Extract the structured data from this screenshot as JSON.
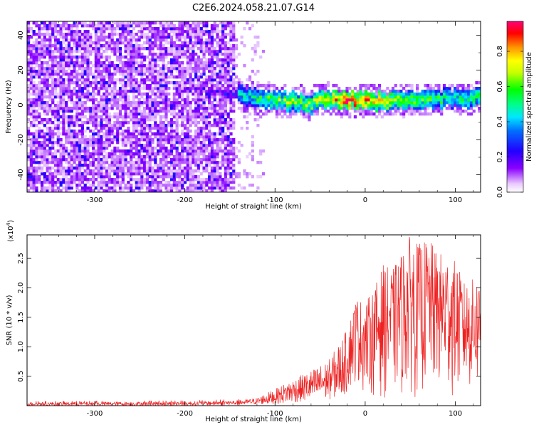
{
  "title": "C2E6.2024.058.21.07.G14",
  "chart_data": [
    {
      "type": "heatmap",
      "title": "C2E6.2024.058.21.07.G14",
      "xlabel": "Height of straight line (km)",
      "ylabel": "Frequency (Hz)",
      "xlim": [
        -375,
        128
      ],
      "ylim": [
        -50,
        48
      ],
      "xticks": [
        -300,
        -200,
        -100,
        0,
        100
      ],
      "yticks": [
        -40,
        -20,
        0,
        20,
        40
      ],
      "xtick_labels": [
        "-300",
        "-200",
        "-100",
        "0",
        "100"
      ],
      "ytick_labels": [
        "-40",
        "-20",
        "0",
        "20",
        "40"
      ],
      "colorbar": {
        "label": "Normalized spectral amplitude",
        "range": [
          0,
          0.97
        ],
        "ticks": [
          0.0,
          0.2,
          0.4,
          0.6,
          0.8
        ],
        "tick_labels": [
          "0.0",
          "0.2",
          "0.4",
          "0.6",
          "0.8"
        ],
        "colormap": [
          "#ffffff",
          "#8a00ff",
          "#0000ff",
          "#00ffff",
          "#00ff00",
          "#ffff00",
          "#ff8000",
          "#ff0000",
          "#ff0080"
        ]
      },
      "description_points": {
        "noise_region_x": [
          -375,
          -145
        ],
        "signal_track": {
          "x": [
            -180,
            -140,
            -120,
            -100,
            -80,
            -60,
            -40,
            -20,
            0,
            20,
            40,
            60,
            80,
            100,
            128
          ],
          "frequency": [
            8,
            6,
            4,
            3,
            2,
            1,
            4,
            3,
            3,
            2,
            2,
            3,
            3,
            4,
            5
          ],
          "amplitude": [
            0.3,
            0.4,
            0.5,
            0.55,
            0.6,
            0.6,
            0.7,
            0.85,
            0.8,
            0.75,
            0.6,
            0.55,
            0.5,
            0.5,
            0.5
          ]
        }
      }
    },
    {
      "type": "line",
      "xlabel": "Height of straight line (km)",
      "ylabel": "SNR (10 * v/v)",
      "yscale_label": "(x10",
      "yscale_exp": "4",
      "yscale_close": ")",
      "xlim": [
        -375,
        128
      ],
      "ylim": [
        0,
        2.9
      ],
      "xticks": [
        -300,
        -200,
        -100,
        0,
        100
      ],
      "yticks": [
        0.5,
        1.0,
        1.5,
        2.0,
        2.5
      ],
      "xtick_labels": [
        "-300",
        "-200",
        "-100",
        "0",
        "100"
      ],
      "ytick_labels": [
        "0.5",
        "1.0",
        "1.5",
        "2.0",
        "2.5"
      ],
      "color": "#ee2222",
      "envelope": {
        "x": [
          -375,
          -200,
          -140,
          -120,
          -100,
          -80,
          -60,
          -40,
          -20,
          -10,
          0,
          10,
          20,
          30,
          40,
          50,
          60,
          70,
          80,
          90,
          100,
          110,
          128
        ],
        "max": [
          0.06,
          0.07,
          0.09,
          0.13,
          0.28,
          0.45,
          0.6,
          0.78,
          1.3,
          1.85,
          1.75,
          2.0,
          2.4,
          2.3,
          2.6,
          2.9,
          2.75,
          2.85,
          2.6,
          2.6,
          2.45,
          2.1,
          2.2
        ],
        "min": [
          0.0,
          0.0,
          0.01,
          0.02,
          0.03,
          0.05,
          0.08,
          0.1,
          0.2,
          0.35,
          0.2,
          0.15,
          0.1,
          0.2,
          0.1,
          0.15,
          0.1,
          0.2,
          0.15,
          0.1,
          0.12,
          0.2,
          0.2
        ]
      }
    }
  ]
}
